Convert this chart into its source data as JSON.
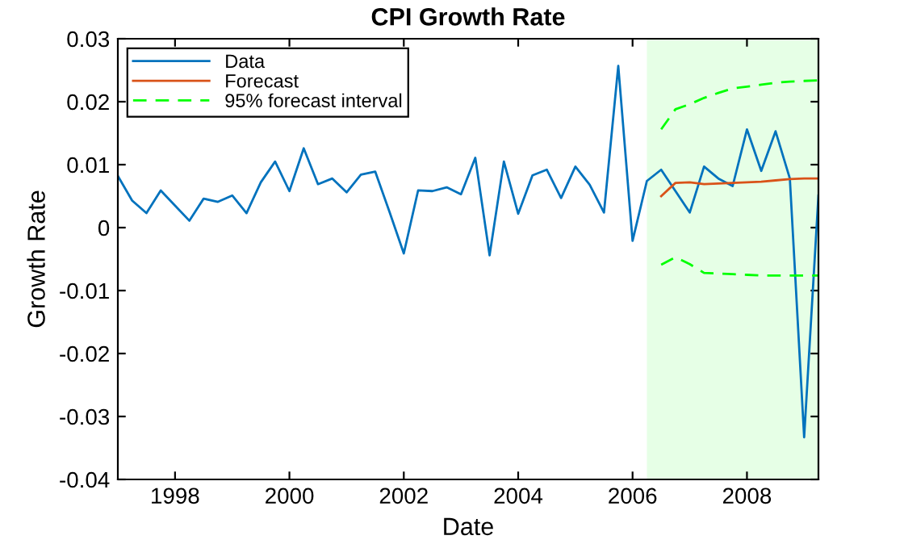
{
  "chart_data": {
    "type": "line",
    "title": "CPI Growth Rate",
    "xlabel": "Date",
    "ylabel": "Growth Rate",
    "xlim": [
      1997,
      2009.25
    ],
    "xticks": [
      1998,
      2000,
      2002,
      2004,
      2006,
      2008
    ],
    "ylim": [
      -0.04,
      0.03
    ],
    "yticks": [
      {
        "value": -0.04,
        "label": "-0.04"
      },
      {
        "value": -0.03,
        "label": "-0.03"
      },
      {
        "value": -0.02,
        "label": "-0.02"
      },
      {
        "value": -0.01,
        "label": "-0.01"
      },
      {
        "value": 0,
        "label": "0"
      },
      {
        "value": 0.01,
        "label": "0.01"
      },
      {
        "value": 0.02,
        "label": "0.02"
      },
      {
        "value": 0.03,
        "label": "0.03"
      }
    ],
    "grid": false,
    "legend": "top left",
    "bands": [
      {
        "axis": "x",
        "from": 2006.25,
        "to": 2009.25,
        "color": "#e6ffe6"
      }
    ],
    "series": [
      {
        "name": "Data",
        "color": "#0072bd",
        "line_style": "solid",
        "x": [
          1997.0,
          1997.25,
          1997.5,
          1997.75,
          1998.0,
          1998.25,
          1998.5,
          1998.75,
          1999.0,
          1999.25,
          1999.5,
          1999.75,
          2000.0,
          2000.25,
          2000.5,
          2000.75,
          2001.0,
          2001.25,
          2001.5,
          2001.75,
          2002.0,
          2002.25,
          2002.5,
          2002.75,
          2003.0,
          2003.25,
          2003.5,
          2003.75,
          2004.0,
          2004.25,
          2004.5,
          2004.75,
          2005.0,
          2005.25,
          2005.5,
          2005.75,
          2006.0,
          2006.25,
          2006.5,
          2006.75,
          2007.0,
          2007.25,
          2007.5,
          2007.75,
          2008.0,
          2008.25,
          2008.5,
          2008.75,
          2009.0,
          2009.25
        ],
        "values": [
          0.0082,
          0.0043,
          0.0023,
          0.0059,
          0.0035,
          0.0011,
          0.0046,
          0.0041,
          0.0051,
          0.0023,
          0.0072,
          0.0105,
          0.0058,
          0.0126,
          0.0069,
          0.0078,
          0.0056,
          0.0084,
          0.0089,
          0.0025,
          -0.0041,
          0.0059,
          0.0058,
          0.0064,
          0.0053,
          0.0111,
          -0.0044,
          0.0105,
          0.0022,
          0.0083,
          0.0092,
          0.0047,
          0.0097,
          0.0068,
          0.0024,
          0.0257,
          -0.0021,
          0.0074,
          0.0092,
          0.0058,
          0.0024,
          0.0097,
          0.0078,
          0.0066,
          0.0156,
          0.009,
          0.0153,
          0.0078,
          -0.0333,
          0.0051
        ]
      },
      {
        "name": "Forecast",
        "color": "#d95319",
        "line_style": "solid",
        "x": [
          2006.5,
          2006.75,
          2007.0,
          2007.25,
          2007.5,
          2007.75,
          2008.0,
          2008.25,
          2008.5,
          2008.75,
          2009.0,
          2009.25
        ],
        "values": [
          0.005,
          0.0071,
          0.0072,
          0.0069,
          0.007,
          0.0071,
          0.0072,
          0.0073,
          0.0075,
          0.0077,
          0.0078,
          0.0078
        ]
      },
      {
        "name": "95% forecast interval",
        "color": "#00ff00",
        "line_style": "dashed",
        "x": [
          2006.5,
          2006.75,
          2007.0,
          2007.25,
          2007.5,
          2007.75,
          2008.0,
          2008.25,
          2008.5,
          2008.75,
          2009.0,
          2009.25
        ],
        "values": [
          0.0156,
          0.0188,
          0.0196,
          0.0206,
          0.0214,
          0.0221,
          0.0224,
          0.0227,
          0.023,
          0.0232,
          0.0233,
          0.0234
        ]
      },
      {
        "color": "#00ff00",
        "line_style": "dashed",
        "x": [
          2006.5,
          2006.75,
          2007.0,
          2007.25,
          2007.5,
          2007.75,
          2008.0,
          2008.25,
          2008.5,
          2008.75,
          2009.0,
          2009.25
        ],
        "values": [
          -0.0059,
          -0.0047,
          -0.0058,
          -0.0072,
          -0.0073,
          -0.0074,
          -0.0075,
          -0.0076,
          -0.0076,
          -0.0076,
          -0.0076,
          -0.0076
        ]
      }
    ]
  }
}
